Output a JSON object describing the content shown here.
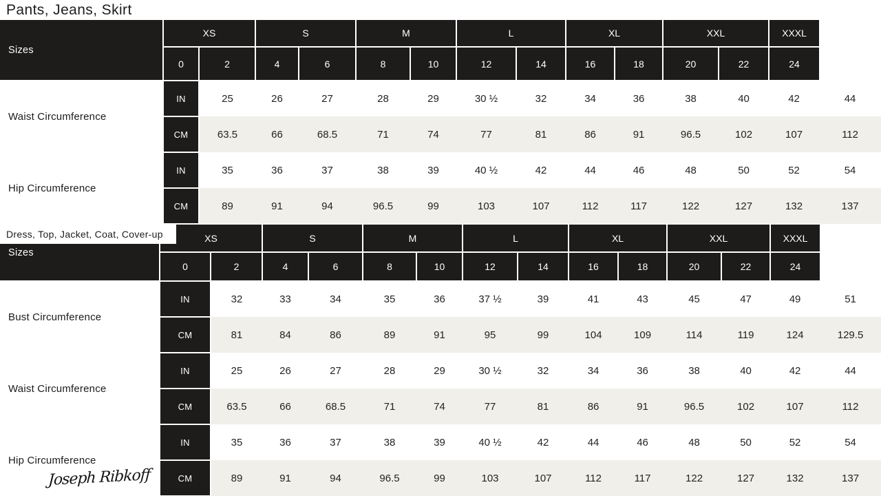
{
  "brand": {
    "logo_text": "Joseph Ribkoff"
  },
  "colors": {
    "header_bg": "#1e1b1b",
    "alt_row_bg": "#f0efe9",
    "text_dark": "#1c1c1c",
    "text_light": "#ffffff",
    "page_bg": "#ffffff"
  },
  "chart_data": [
    {
      "type": "table",
      "title": "Pants, Jeans, Skirt",
      "sizes_label": "Sizes",
      "size_groups": [
        {
          "label": "XS",
          "sizes": [
            "0",
            "2"
          ]
        },
        {
          "label": "S",
          "sizes": [
            "4",
            "6"
          ]
        },
        {
          "label": "M",
          "sizes": [
            "8",
            "10"
          ]
        },
        {
          "label": "L",
          "sizes": [
            "12",
            "14"
          ]
        },
        {
          "label": "XL",
          "sizes": [
            "16",
            "18"
          ]
        },
        {
          "label": "XXL",
          "sizes": [
            "20",
            "22"
          ]
        },
        {
          "label": "XXXL",
          "sizes": [
            "24"
          ]
        }
      ],
      "rows": [
        {
          "label": "Waist Circumference",
          "units": [
            {
              "name": "IN",
              "values": [
                "25",
                "26",
                "27",
                "28",
                "29",
                "30 ½",
                "32",
                "34",
                "36",
                "38",
                "40",
                "42",
                "44"
              ]
            },
            {
              "name": "CM",
              "values": [
                "63.5",
                "66",
                "68.5",
                "71",
                "74",
                "77",
                "81",
                "86",
                "91",
                "96.5",
                "102",
                "107",
                "112"
              ]
            }
          ]
        },
        {
          "label": "Hip Circumference",
          "units": [
            {
              "name": "IN",
              "values": [
                "35",
                "36",
                "37",
                "38",
                "39",
                "40 ½",
                "42",
                "44",
                "46",
                "48",
                "50",
                "52",
                "54"
              ]
            },
            {
              "name": "CM",
              "values": [
                "89",
                "91",
                "94",
                "96.5",
                "99",
                "103",
                "107",
                "112",
                "117",
                "122",
                "127",
                "132",
                "137"
              ]
            }
          ]
        }
      ]
    },
    {
      "type": "table",
      "title": "Dress, Top, Jacket, Coat, Cover-up",
      "sizes_label": "Sizes",
      "size_groups": [
        {
          "label": "XS",
          "sizes": [
            "0",
            "2"
          ]
        },
        {
          "label": "S",
          "sizes": [
            "4",
            "6"
          ]
        },
        {
          "label": "M",
          "sizes": [
            "8",
            "10"
          ]
        },
        {
          "label": "L",
          "sizes": [
            "12",
            "14"
          ]
        },
        {
          "label": "XL",
          "sizes": [
            "16",
            "18"
          ]
        },
        {
          "label": "XXL",
          "sizes": [
            "20",
            "22"
          ]
        },
        {
          "label": "XXXL",
          "sizes": [
            "24"
          ]
        }
      ],
      "rows": [
        {
          "label": "Bust Circumference",
          "units": [
            {
              "name": "IN",
              "values": [
                "32",
                "33",
                "34",
                "35",
                "36",
                "37 ½",
                "39",
                "41",
                "43",
                "45",
                "47",
                "49",
                "51"
              ]
            },
            {
              "name": "CM",
              "values": [
                "81",
                "84",
                "86",
                "89",
                "91",
                "95",
                "99",
                "104",
                "109",
                "114",
                "119",
                "124",
                "129.5"
              ]
            }
          ]
        },
        {
          "label": "Waist Circumference",
          "units": [
            {
              "name": "IN",
              "values": [
                "25",
                "26",
                "27",
                "28",
                "29",
                "30 ½",
                "32",
                "34",
                "36",
                "38",
                "40",
                "42",
                "44"
              ]
            },
            {
              "name": "CM",
              "values": [
                "63.5",
                "66",
                "68.5",
                "71",
                "74",
                "77",
                "81",
                "86",
                "91",
                "96.5",
                "102",
                "107",
                "112"
              ]
            }
          ]
        },
        {
          "label": "Hip Circumference",
          "units": [
            {
              "name": "IN",
              "values": [
                "35",
                "36",
                "37",
                "38",
                "39",
                "40 ½",
                "42",
                "44",
                "46",
                "48",
                "50",
                "52",
                "54"
              ]
            },
            {
              "name": "CM",
              "values": [
                "89",
                "91",
                "94",
                "96.5",
                "99",
                "103",
                "107",
                "112",
                "117",
                "122",
                "127",
                "132",
                "137"
              ]
            }
          ]
        }
      ]
    }
  ]
}
